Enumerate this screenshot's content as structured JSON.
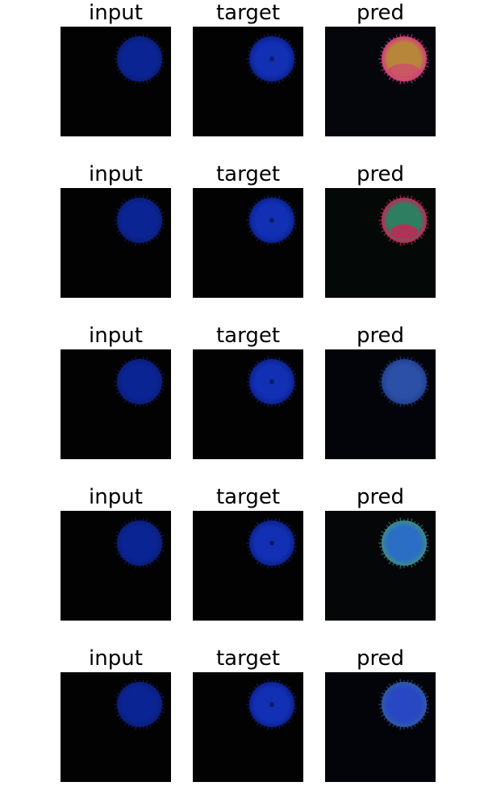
{
  "column_titles": [
    "input",
    "target",
    "pred"
  ],
  "rows": [
    {
      "panels": [
        {
          "title": "input",
          "image_desc": "solid-blue-disc",
          "colors": {
            "bg": "#020202",
            "main": "#0a2494",
            "edge": "#0b1e7a"
          }
        },
        {
          "title": "target",
          "image_desc": "blue-fuzzy-disc-dark-center",
          "colors": {
            "bg": "#020202",
            "main": "#1230b4",
            "edge": "#0c2290"
          }
        },
        {
          "title": "pred",
          "image_desc": "orange-magenta-disc",
          "colors": {
            "bg": "#05050c",
            "main": "#b8863a",
            "edge": "#d33a7e"
          }
        }
      ]
    },
    {
      "panels": [
        {
          "title": "input",
          "image_desc": "solid-blue-disc",
          "colors": {
            "bg": "#020202",
            "main": "#0a2494",
            "edge": "#0b1e7a"
          }
        },
        {
          "title": "target",
          "image_desc": "blue-fuzzy-disc-dark-center",
          "colors": {
            "bg": "#020202",
            "main": "#1230b4",
            "edge": "#0c2290"
          }
        },
        {
          "title": "pred",
          "image_desc": "green-blue-disc-red-bottom",
          "colors": {
            "bg": "#040806",
            "main": "#2e7e62",
            "edge": "#c42756"
          }
        }
      ]
    },
    {
      "panels": [
        {
          "title": "input",
          "image_desc": "solid-blue-disc",
          "colors": {
            "bg": "#020202",
            "main": "#0a2494",
            "edge": "#0b1e7a"
          }
        },
        {
          "title": "target",
          "image_desc": "blue-fuzzy-disc-dark-center",
          "colors": {
            "bg": "#020202",
            "main": "#1230b4",
            "edge": "#0c2290"
          }
        },
        {
          "title": "pred",
          "image_desc": "dull-blue-disc",
          "colors": {
            "bg": "#03040a",
            "main": "#2c50a6",
            "edge": "#224090"
          }
        }
      ]
    },
    {
      "panels": [
        {
          "title": "input",
          "image_desc": "solid-blue-disc",
          "colors": {
            "bg": "#020202",
            "main": "#0a2494",
            "edge": "#0b1e7a"
          }
        },
        {
          "title": "target",
          "image_desc": "blue-fuzzy-disc-dark-center",
          "colors": {
            "bg": "#020202",
            "main": "#1230b4",
            "edge": "#0c2290"
          }
        },
        {
          "title": "pred",
          "image_desc": "light-blue-disc",
          "colors": {
            "bg": "#040607",
            "main": "#2a6ec6",
            "edge": "#3d8a8a"
          }
        }
      ]
    },
    {
      "panels": [
        {
          "title": "input",
          "image_desc": "solid-blue-disc",
          "colors": {
            "bg": "#020202",
            "main": "#0a2494",
            "edge": "#0b1e7a"
          }
        },
        {
          "title": "target",
          "image_desc": "blue-fuzzy-disc-dark-center",
          "colors": {
            "bg": "#020202",
            "main": "#1230b4",
            "edge": "#0c2290"
          }
        },
        {
          "title": "pred",
          "image_desc": "bright-blue-disc",
          "colors": {
            "bg": "#030409",
            "main": "#2748c2",
            "edge": "#2f5aa8"
          }
        }
      ]
    }
  ]
}
